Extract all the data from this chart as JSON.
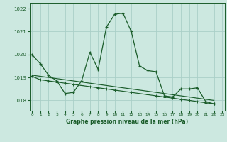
{
  "title": "Graphe pression niveau de la mer (hPa)",
  "bg_color": "#cce8e0",
  "grid_color": "#aacfc8",
  "line_color": "#1a5c2a",
  "line1": [
    1020.0,
    1019.6,
    1019.1,
    1018.85,
    1018.3,
    1018.35,
    1018.85,
    1020.1,
    1019.35,
    1021.2,
    1021.75,
    1021.8,
    1021.0,
    1019.5,
    1019.3,
    1019.25,
    1018.2,
    1018.15,
    1018.5,
    1018.5,
    1018.55,
    1017.95,
    1017.85
  ],
  "line2": [
    1019.05,
    1018.9,
    1018.85,
    1018.8,
    1018.75,
    1018.7,
    1018.65,
    1018.6,
    1018.55,
    1018.5,
    1018.45,
    1018.4,
    1018.35,
    1018.3,
    1018.25,
    1018.2,
    1018.15,
    1018.1,
    1018.05,
    1018.0,
    1017.95,
    1017.9,
    1017.85
  ],
  "line3": [
    1019.1,
    1019.05,
    1019.0,
    1018.95,
    1018.9,
    1018.85,
    1018.8,
    1018.75,
    1018.7,
    1018.65,
    1018.6,
    1018.55,
    1018.5,
    1018.45,
    1018.4,
    1018.35,
    1018.3,
    1018.25,
    1018.2,
    1018.15,
    1018.1,
    1018.05,
    1018.0
  ],
  "ylim": [
    1017.55,
    1022.25
  ],
  "yticks": [
    1018,
    1019,
    1020,
    1021,
    1022
  ],
  "xticks": [
    0,
    1,
    2,
    3,
    4,
    5,
    6,
    7,
    8,
    9,
    10,
    11,
    12,
    13,
    14,
    15,
    16,
    17,
    18,
    19,
    20,
    21,
    22,
    23
  ],
  "xlim": [
    -0.3,
    23.3
  ]
}
